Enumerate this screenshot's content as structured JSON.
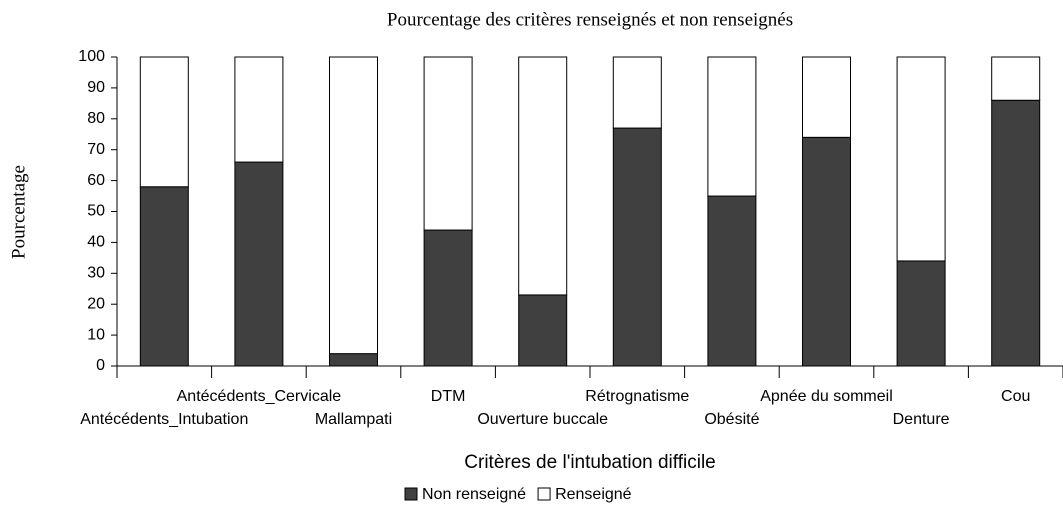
{
  "chart_data": {
    "type": "stacked_bar",
    "title": "Pourcentage des critères renseignés et non renseignés",
    "x_label": "Critères de l'intubation difficile",
    "y_label": "Pourcentage",
    "categories": [
      "Antécédents_Intubation",
      "Antécédents_Cervicale",
      "Mallampati",
      "DTM",
      "Ouverture buccale",
      "Rétrognatisme",
      "Obésité",
      "Apnée du sommeil",
      "Denture",
      "Cou"
    ],
    "series": [
      {
        "name": "Non renseigné",
        "color": "#404040",
        "values": [
          58,
          66,
          4,
          44,
          23,
          77,
          55,
          74,
          34,
          86
        ]
      },
      {
        "name": "Renseigné",
        "color": "#ffffff",
        "values": [
          42,
          34,
          96,
          56,
          77,
          23,
          45,
          26,
          66,
          14
        ]
      }
    ],
    "ylim": [
      0,
      100
    ],
    "yticks": [
      0,
      10,
      20,
      30,
      40,
      50,
      60,
      70,
      80,
      90,
      100
    ],
    "grid": false,
    "legend": "bottom"
  }
}
